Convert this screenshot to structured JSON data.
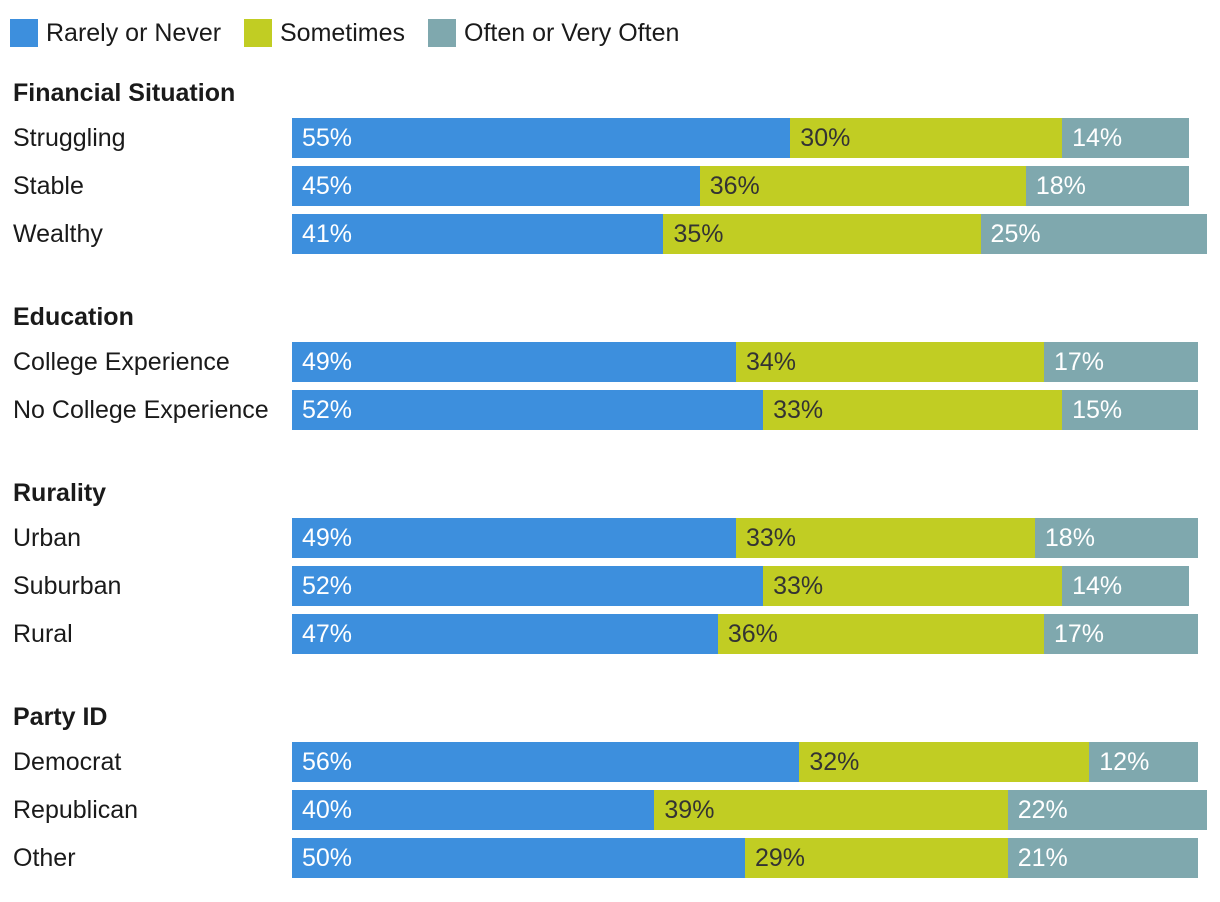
{
  "chart_data": {
    "type": "bar",
    "orientation": "horizontal",
    "stacked": true,
    "title": "",
    "xlabel": "",
    "ylabel": "",
    "xlim": [
      0,
      100
    ],
    "grid": false,
    "legend_position": "top-left",
    "series": [
      {
        "name": "Rarely or Never",
        "color": "#3d8fdd",
        "label_color": "#ffffff"
      },
      {
        "name": "Sometimes",
        "color": "#c1cd23",
        "label_color": "#333333"
      },
      {
        "name": "Often or Very Often",
        "color": "#7fa8ae",
        "label_color": "#ffffff"
      }
    ],
    "groups": [
      {
        "title": "Financial Situation",
        "rows": [
          {
            "label": "Struggling",
            "values": [
              55,
              30,
              14
            ]
          },
          {
            "label": "Stable",
            "values": [
              45,
              36,
              18
            ]
          },
          {
            "label": "Wealthy",
            "values": [
              41,
              35,
              25
            ]
          }
        ]
      },
      {
        "title": "Education",
        "rows": [
          {
            "label": "College Experience",
            "values": [
              49,
              34,
              17
            ]
          },
          {
            "label": "No College Experience",
            "values": [
              52,
              33,
              15
            ]
          }
        ]
      },
      {
        "title": "Rurality",
        "rows": [
          {
            "label": "Urban",
            "values": [
              49,
              33,
              18
            ]
          },
          {
            "label": "Suburban",
            "values": [
              52,
              33,
              14
            ]
          },
          {
            "label": "Rural",
            "values": [
              47,
              36,
              17
            ]
          }
        ]
      },
      {
        "title": "Party ID",
        "rows": [
          {
            "label": "Democrat",
            "values": [
              56,
              32,
              12
            ]
          },
          {
            "label": "Republican",
            "values": [
              40,
              39,
              22
            ]
          },
          {
            "label": "Other",
            "values": [
              50,
              29,
              21
            ]
          }
        ]
      }
    ]
  }
}
